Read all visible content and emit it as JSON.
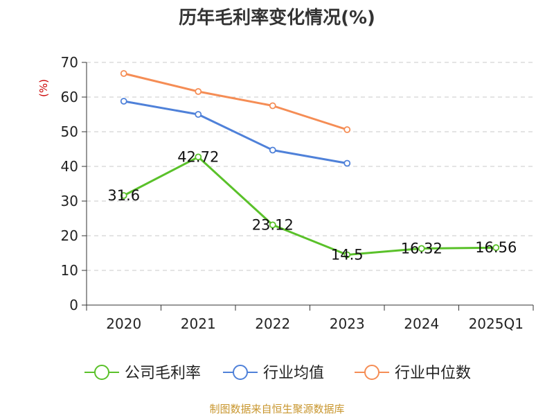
{
  "chart_data": {
    "type": "line",
    "title": "历年毛利率变化情况(%)",
    "ylabel": "(%)",
    "xlabel": "",
    "categories": [
      "2020",
      "2021",
      "2022",
      "2023",
      "2024",
      "2025Q1"
    ],
    "ylim": [
      0,
      70
    ],
    "yticks": [
      0,
      10,
      20,
      30,
      40,
      50,
      60,
      70
    ],
    "grid": true,
    "legend_position": "bottom",
    "series": [
      {
        "name": "公司毛利率",
        "color": "#5ac12a",
        "values": [
          31.6,
          42.72,
          23.12,
          14.5,
          16.32,
          16.56
        ],
        "labels": [
          "31.6",
          "42.72",
          "23.12",
          "14.5",
          "16.32",
          "16.56"
        ]
      },
      {
        "name": "行业均值",
        "color": "#4f81d9",
        "values": [
          58.8,
          55.0,
          44.7,
          40.9,
          null,
          null
        ]
      },
      {
        "name": "行业中位数",
        "color": "#f58d55",
        "values": [
          66.8,
          61.6,
          57.5,
          50.6,
          null,
          null
        ]
      }
    ]
  },
  "footer": {
    "source": "制图数据来自恒生聚源数据库"
  }
}
